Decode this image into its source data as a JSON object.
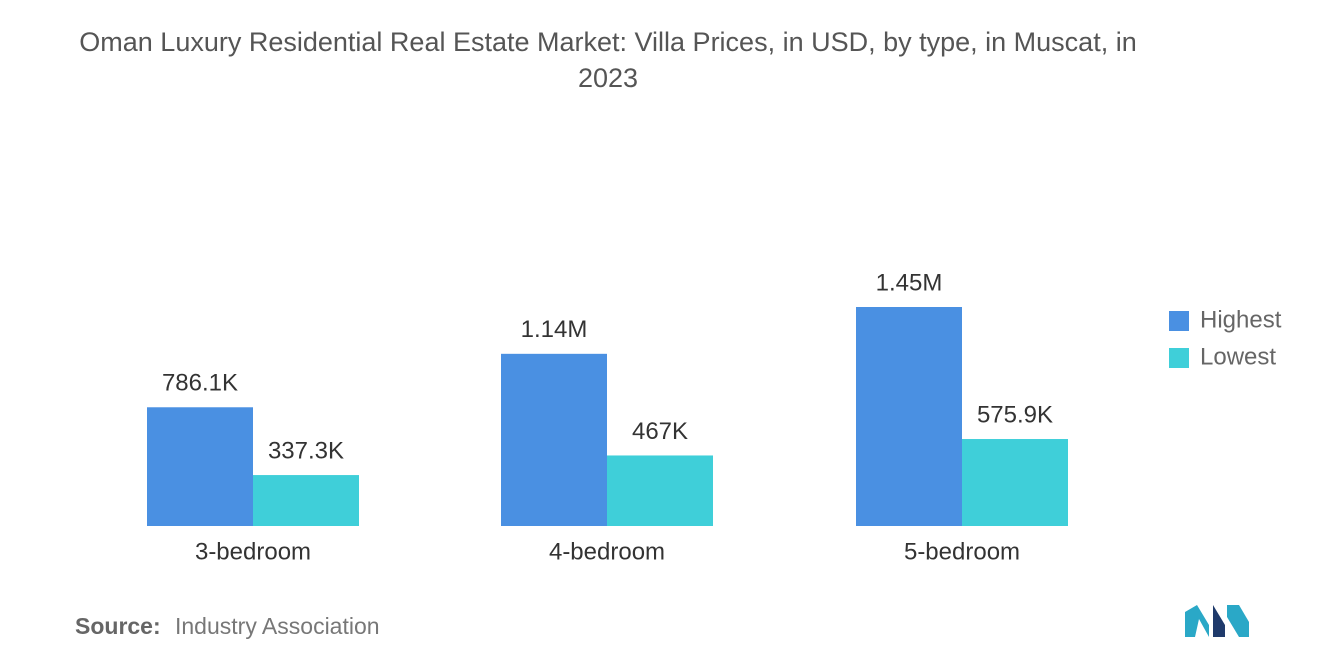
{
  "chart_data": {
    "type": "bar",
    "title": "Oman Luxury Residential Real Estate Market: Villa Prices, in USD, by type, in Muscat, in 2023",
    "categories": [
      "3-bedroom",
      "4-bedroom",
      "5-bedroom"
    ],
    "series": [
      {
        "name": "Highest",
        "color": "#4a90e2",
        "values": [
          786100,
          1140000,
          1450000
        ],
        "value_labels": [
          "786.1K",
          "1.14M",
          "1.45M"
        ]
      },
      {
        "name": "Lowest",
        "color": "#3fcfd9",
        "values": [
          337300,
          467000,
          575900
        ],
        "value_labels": [
          "337.3K",
          "467K",
          "575.9K"
        ]
      }
    ],
    "legend": "right",
    "source_label": "Source:",
    "source": "Industry Association"
  }
}
